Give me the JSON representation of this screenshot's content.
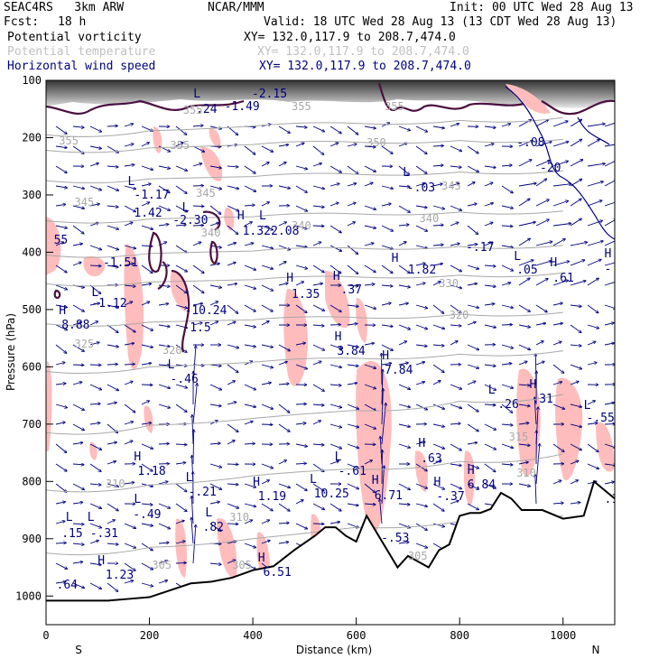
{
  "header": {
    "model": "SEAC4RS   3km ARW",
    "org": "NCAR/MMM",
    "init": "Init: 00 UTC Wed 28 Aug 13",
    "fcst_label": "Fcst:",
    "fcst_value": "18 h",
    "valid": "Valid: 18 UTC Wed 28 Aug 13 (13 CDT Wed 28 Aug 13)"
  },
  "fields": [
    {
      "name": "Potential vorticity",
      "xy": "XY= 132.0,117.9 to 208.7,474.0",
      "color": "#000000"
    },
    {
      "name": "Potential temperature",
      "xy": "XY= 132.0,117.9 to 208.7,474.0",
      "color": "#c0c0c0"
    },
    {
      "name": "Horizontal wind speed",
      "xy": "XY= 132.0,117.9 to 208.7,474.0",
      "color": "#00007f"
    }
  ],
  "colors": {
    "pv_contour": "#4b0f3f",
    "theta_contour": "#a8a8a8",
    "pink_shading": "#ffbcbc",
    "wind_vector": "#000080",
    "terrain": "#ffffff"
  },
  "chart_data": {
    "type": "cross-section",
    "xlabel": "Distance (km)",
    "ylabel": "Pressure (hPa)",
    "xlim": [
      0,
      1100
    ],
    "ylim": [
      1050,
      100
    ],
    "x_ticks": [
      0,
      200,
      400,
      600,
      800,
      1000
    ],
    "y_ticks": [
      100,
      200,
      300,
      400,
      500,
      600,
      700,
      800,
      900,
      1000
    ],
    "end_labels": {
      "left": "S",
      "right": "N"
    },
    "terrain_pressure": [
      [
        0,
        1008
      ],
      [
        120,
        1008
      ],
      [
        160,
        1005
      ],
      [
        200,
        1002
      ],
      [
        240,
        990
      ],
      [
        280,
        978
      ],
      [
        320,
        975
      ],
      [
        360,
        968
      ],
      [
        400,
        955
      ],
      [
        440,
        948
      ],
      [
        480,
        920
      ],
      [
        520,
        895
      ],
      [
        540,
        880
      ],
      [
        560,
        880
      ],
      [
        580,
        895
      ],
      [
        600,
        905
      ],
      [
        620,
        860
      ],
      [
        660,
        920
      ],
      [
        680,
        950
      ],
      [
        700,
        930
      ],
      [
        740,
        950
      ],
      [
        760,
        920
      ],
      [
        780,
        910
      ],
      [
        800,
        860
      ],
      [
        820,
        855
      ],
      [
        840,
        855
      ],
      [
        860,
        848
      ],
      [
        880,
        820
      ],
      [
        900,
        830
      ],
      [
        920,
        850
      ],
      [
        960,
        850
      ],
      [
        1000,
        865
      ],
      [
        1040,
        860
      ],
      [
        1060,
        800
      ],
      [
        1080,
        815
      ],
      [
        1100,
        830
      ]
    ],
    "theta_contours": [
      {
        "label": "355",
        "points": [
          [
            0,
            195
          ],
          [
            200,
            188
          ],
          [
            400,
            180
          ],
          [
            600,
            175
          ],
          [
            800,
            170
          ],
          [
            1000,
            165
          ]
        ]
      },
      {
        "label": "350",
        "points": [
          [
            0,
            222
          ],
          [
            200,
            218
          ],
          [
            400,
            212
          ],
          [
            600,
            208
          ],
          [
            800,
            205
          ],
          [
            1000,
            203
          ]
        ]
      },
      {
        "label": "345",
        "points": [
          [
            0,
            275
          ],
          [
            200,
            272
          ],
          [
            400,
            268
          ],
          [
            600,
            264
          ],
          [
            800,
            260
          ],
          [
            1000,
            258
          ]
        ]
      },
      {
        "label": "340",
        "points": [
          [
            0,
            345
          ],
          [
            200,
            342
          ],
          [
            400,
            338
          ],
          [
            600,
            333
          ],
          [
            800,
            330
          ],
          [
            1000,
            328
          ]
        ]
      },
      {
        "label": "335",
        "points": [
          [
            0,
            405
          ],
          [
            200,
            402
          ],
          [
            400,
            398
          ],
          [
            600,
            393
          ],
          [
            800,
            390
          ],
          [
            1000,
            388
          ]
        ]
      },
      {
        "label": "330",
        "points": [
          [
            0,
            455
          ],
          [
            200,
            452
          ],
          [
            400,
            448
          ],
          [
            600,
            443
          ],
          [
            800,
            440
          ],
          [
            1000,
            436
          ]
        ]
      },
      {
        "label": "325",
        "points": [
          [
            0,
            525
          ],
          [
            200,
            522
          ],
          [
            400,
            518
          ],
          [
            600,
            514
          ],
          [
            800,
            508
          ],
          [
            1000,
            505
          ]
        ]
      },
      {
        "label": "320",
        "points": [
          [
            0,
            608
          ],
          [
            200,
            600
          ],
          [
            400,
            592
          ],
          [
            600,
            585
          ],
          [
            800,
            578
          ],
          [
            1000,
            572
          ]
        ]
      },
      {
        "label": "315",
        "points": [
          [
            0,
            715
          ],
          [
            200,
            702
          ],
          [
            400,
            690
          ],
          [
            600,
            676
          ],
          [
            800,
            660
          ],
          [
            1000,
            648
          ]
        ]
      },
      {
        "label": "310",
        "points": [
          [
            0,
            815
          ],
          [
            200,
            806
          ],
          [
            400,
            790
          ],
          [
            600,
            778
          ],
          [
            800,
            765
          ],
          [
            1000,
            752
          ]
        ]
      },
      {
        "label": "305",
        "points": [
          [
            0,
            925
          ],
          [
            200,
            915
          ],
          [
            400,
            900
          ],
          [
            600,
            880
          ],
          [
            800,
            870
          ],
          [
            1000,
            860
          ]
        ]
      }
    ],
    "labels": [
      {
        "text": "L",
        "x": 285,
        "y": 108
      },
      {
        "text": ".24",
        "x": 290,
        "y": 125
      },
      {
        "text": "-1.49",
        "x": 345,
        "y": 122
      },
      {
        "text": "-2.15",
        "x": 398,
        "y": 108
      },
      {
        "text": "355",
        "x": 475,
        "y": 122
      },
      {
        "text": "355",
        "x": 655,
        "y": 122
      },
      {
        "text": "355",
        "x": 265,
        "y": 126
      },
      {
        "text": "355",
        "x": 25,
        "y": 160
      },
      {
        "text": "355",
        "x": 240,
        "y": 165
      },
      {
        "text": "350",
        "x": 620,
        "y": 162
      },
      {
        "text": "-.08",
        "x": 910,
        "y": 162
      },
      {
        "text": "-20",
        "x": 955,
        "y": 190
      },
      {
        "text": "L",
        "x": 158,
        "y": 205
      },
      {
        "text": "-1.17",
        "x": 170,
        "y": 220
      },
      {
        "text": "1.42",
        "x": 170,
        "y": 240
      },
      {
        "text": "L",
        "x": 690,
        "y": 195
      },
      {
        "text": "-.03",
        "x": 698,
        "y": 212
      },
      {
        "text": "345",
        "x": 55,
        "y": 228
      },
      {
        "text": "345",
        "x": 290,
        "y": 218
      },
      {
        "text": "345",
        "x": 765,
        "y": 210
      },
      {
        "text": "L",
        "x": 263,
        "y": 234
      },
      {
        "text": "-2.30",
        "x": 245,
        "y": 248
      },
      {
        "text": "H",
        "x": 370,
        "y": 243
      },
      {
        "text": "L",
        "x": 412,
        "y": 243
      },
      {
        "text": "1.32",
        "x": 380,
        "y": 260
      },
      {
        "text": "2.08",
        "x": 435,
        "y": 260
      },
      {
        "text": "340",
        "x": 300,
        "y": 262
      },
      {
        "text": "340",
        "x": 475,
        "y": 254
      },
      {
        "text": "340",
        "x": 722,
        "y": 246
      },
      {
        "text": "55",
        "x": 15,
        "y": 270
      },
      {
        "text": "-.17",
        "x": 812,
        "y": 278
      },
      {
        "text": "H",
        "x": 1080,
        "y": 285
      },
      {
        "text": "-.83",
        "x": 1080,
        "y": 302
      },
      {
        "text": "-1.51",
        "x": 110,
        "y": 295
      },
      {
        "text": "1.82",
        "x": 700,
        "y": 303
      },
      {
        "text": "L",
        "x": 905,
        "y": 288
      },
      {
        "text": ".05",
        "x": 910,
        "y": 303
      },
      {
        "text": "H",
        "x": 975,
        "y": 295
      },
      {
        "text": ".61",
        "x": 980,
        "y": 312
      },
      {
        "text": "H",
        "x": 668,
        "y": 290
      },
      {
        "text": "L",
        "x": 88,
        "y": 328
      },
      {
        "text": "-1.12",
        "x": 88,
        "y": 340
      },
      {
        "text": "H",
        "x": 465,
        "y": 312
      },
      {
        "text": "1.35",
        "x": 475,
        "y": 330
      },
      {
        "text": "H",
        "x": 555,
        "y": 310
      },
      {
        "text": ".37",
        "x": 570,
        "y": 325
      },
      {
        "text": "330",
        "x": 760,
        "y": 318
      },
      {
        "text": "H",
        "x": 25,
        "y": 348
      },
      {
        "text": "8.88",
        "x": 30,
        "y": 364
      },
      {
        "text": "-10.24",
        "x": 268,
        "y": 348
      },
      {
        "text": "320",
        "x": 780,
        "y": 353
      },
      {
        "text": "1.5",
        "x": 278,
        "y": 367
      },
      {
        "text": "325",
        "x": 55,
        "y": 385
      },
      {
        "text": "H",
        "x": 558,
        "y": 377
      },
      {
        "text": "3.84",
        "x": 563,
        "y": 393
      },
      {
        "text": "320",
        "x": 225,
        "y": 392
      },
      {
        "text": "L",
        "x": 235,
        "y": 408
      },
      {
        "text": "-.46",
        "x": 240,
        "y": 424
      },
      {
        "text": "H",
        "x": 650,
        "y": 398
      },
      {
        "text": "7.84",
        "x": 655,
        "y": 414
      },
      {
        "text": "L",
        "x": 855,
        "y": 436
      },
      {
        "text": "-.26",
        "x": 860,
        "y": 452
      },
      {
        "text": "H",
        "x": 935,
        "y": 430
      },
      {
        "text": ".31",
        "x": 940,
        "y": 446
      },
      {
        "text": "L",
        "x": 1040,
        "y": 453
      },
      {
        "text": "-.55",
        "x": 1045,
        "y": 467
      },
      {
        "text": "H",
        "x": 720,
        "y": 495
      },
      {
        "text": ".63",
        "x": 725,
        "y": 512
      },
      {
        "text": "H",
        "x": 170,
        "y": 510
      },
      {
        "text": "1.18",
        "x": 177,
        "y": 526
      },
      {
        "text": "L",
        "x": 558,
        "y": 510
      },
      {
        "text": "-.61",
        "x": 565,
        "y": 526
      },
      {
        "text": "H",
        "x": 815,
        "y": 525
      },
      {
        "text": "6.84",
        "x": 815,
        "y": 541
      },
      {
        "text": "310",
        "x": 115,
        "y": 540
      },
      {
        "text": "315",
        "x": 895,
        "y": 488
      },
      {
        "text": "L",
        "x": 270,
        "y": 533
      },
      {
        "text": "-.21",
        "x": 275,
        "y": 549
      },
      {
        "text": "H",
        "x": 400,
        "y": 538
      },
      {
        "text": "1.19",
        "x": 410,
        "y": 554
      },
      {
        "text": "L",
        "x": 510,
        "y": 535
      },
      {
        "text": "10.25",
        "x": 518,
        "y": 551
      },
      {
        "text": "H",
        "x": 630,
        "y": 536
      },
      {
        "text": "6.71",
        "x": 635,
        "y": 553
      },
      {
        "text": "H",
        "x": 750,
        "y": 538
      },
      {
        "text": "-.37",
        "x": 755,
        "y": 554
      },
      {
        "text": "310",
        "x": 910,
        "y": 528
      },
      {
        "text": ".1",
        "x": 1080,
        "y": 557
      },
      {
        "text": "L",
        "x": 170,
        "y": 557
      },
      {
        "text": "-.49",
        "x": 168,
        "y": 574
      },
      {
        "text": "L",
        "x": 38,
        "y": 577
      },
      {
        "text": ".15",
        "x": 30,
        "y": 595
      },
      {
        "text": "L",
        "x": 80,
        "y": 577
      },
      {
        "text": "-.31",
        "x": 85,
        "y": 595
      },
      {
        "text": "L",
        "x": 308,
        "y": 572
      },
      {
        "text": ".82",
        "x": 303,
        "y": 588
      },
      {
        "text": "310",
        "x": 355,
        "y": 577
      },
      {
        "text": "-.53",
        "x": 648,
        "y": 600
      },
      {
        "text": "305",
        "x": 205,
        "y": 630
      },
      {
        "text": "305",
        "x": 360,
        "y": 630
      },
      {
        "text": "H",
        "x": 100,
        "y": 625
      },
      {
        "text": "1.23",
        "x": 115,
        "y": 641
      },
      {
        "text": "H",
        "x": 410,
        "y": 622
      },
      {
        "text": "6.51",
        "x": 420,
        "y": 638
      },
      {
        "text": "305",
        "x": 700,
        "y": 620
      },
      {
        "text": ".64",
        "x": 20,
        "y": 652
      }
    ]
  }
}
